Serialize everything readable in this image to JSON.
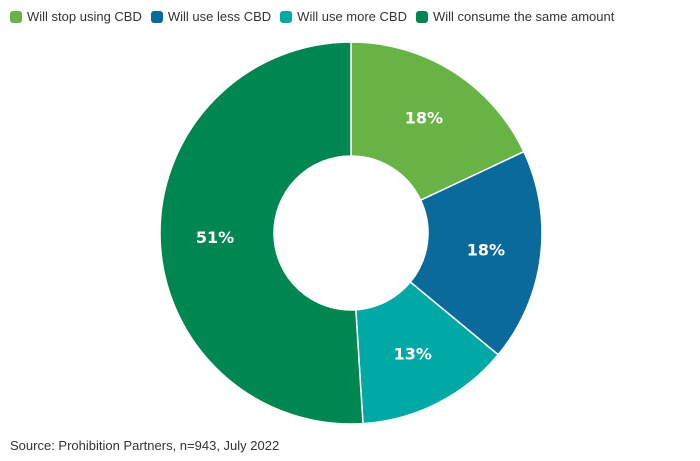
{
  "chart_data": {
    "type": "pie",
    "title": "",
    "donut": true,
    "legend_position": "top-left",
    "categories": [
      "Will stop using CBD",
      "Will use less CBD",
      "Will use more CBD",
      "Will consume the same amount"
    ],
    "values": [
      18,
      18,
      13,
      51
    ],
    "labels": [
      "18%",
      "18%",
      "13%",
      "51%"
    ],
    "colors": [
      "#67b346",
      "#0a6a9c",
      "#00a9a5",
      "#008651"
    ]
  },
  "source": "Source: Prohibition Partners, n=943, July 2022"
}
